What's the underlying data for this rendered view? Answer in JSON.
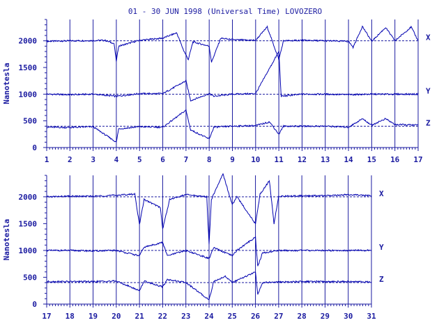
{
  "title": "01 - 30 JUN 1998 (Universal Time) LOVOZERO",
  "colors": {
    "ink": "#1a1aa0",
    "trace": "#0000b0",
    "background": "#ffffff"
  },
  "chart_data": [
    {
      "type": "line",
      "panel": "top",
      "ylabel": "Nanotesla",
      "ylim": [
        0,
        2400
      ],
      "y_ticks": [
        "0",
        "500",
        "1000",
        "1500",
        "2000"
      ],
      "y_tick_values": [
        0,
        500,
        1000,
        1500,
        2000
      ],
      "x_ticks": [
        "1",
        "2",
        "3",
        "4",
        "5",
        "6",
        "7",
        "8",
        "9",
        "10",
        "11",
        "12",
        "13",
        "14",
        "15",
        "16",
        "17"
      ],
      "xlim": [
        1,
        17
      ],
      "series": [
        {
          "name": "X",
          "baseline": 2000,
          "values": [
            {
              "x": 1,
              "y": 1990
            },
            {
              "x": 2,
              "y": 2000
            },
            {
              "x": 3,
              "y": 2005
            },
            {
              "x": 3.5,
              "y": 2010
            },
            {
              "x": 3.9,
              "y": 1950
            },
            {
              "x": 4.0,
              "y": 1620
            },
            {
              "x": 4.1,
              "y": 1900
            },
            {
              "x": 5,
              "y": 2010
            },
            {
              "x": 6,
              "y": 2050
            },
            {
              "x": 6.6,
              "y": 2150
            },
            {
              "x": 6.9,
              "y": 1820
            },
            {
              "x": 7.1,
              "y": 1650
            },
            {
              "x": 7.3,
              "y": 1980
            },
            {
              "x": 8,
              "y": 1900
            },
            {
              "x": 8.1,
              "y": 1600
            },
            {
              "x": 8.5,
              "y": 2050
            },
            {
              "x": 9,
              "y": 2020
            },
            {
              "x": 10,
              "y": 2010
            },
            {
              "x": 10.5,
              "y": 2260
            },
            {
              "x": 11.0,
              "y": 1650
            },
            {
              "x": 11.2,
              "y": 2000
            },
            {
              "x": 12,
              "y": 2010
            },
            {
              "x": 13,
              "y": 2000
            },
            {
              "x": 14,
              "y": 1990
            },
            {
              "x": 14.2,
              "y": 1880
            },
            {
              "x": 14.6,
              "y": 2270
            },
            {
              "x": 15,
              "y": 1990
            },
            {
              "x": 15.6,
              "y": 2250
            },
            {
              "x": 16,
              "y": 2000
            },
            {
              "x": 16.7,
              "y": 2260
            },
            {
              "x": 17,
              "y": 2000
            }
          ]
        },
        {
          "name": "Y",
          "baseline": 1000,
          "values": [
            {
              "x": 1,
              "y": 1000
            },
            {
              "x": 2,
              "y": 990
            },
            {
              "x": 3,
              "y": 1000
            },
            {
              "x": 4,
              "y": 960
            },
            {
              "x": 5,
              "y": 1010
            },
            {
              "x": 6,
              "y": 1010
            },
            {
              "x": 7.0,
              "y": 1250
            },
            {
              "x": 7.2,
              "y": 880
            },
            {
              "x": 8,
              "y": 1010
            },
            {
              "x": 8.2,
              "y": 960
            },
            {
              "x": 9,
              "y": 1000
            },
            {
              "x": 10,
              "y": 1010
            },
            {
              "x": 11.0,
              "y": 1800
            },
            {
              "x": 11.1,
              "y": 960
            },
            {
              "x": 12,
              "y": 1000
            },
            {
              "x": 13,
              "y": 1000
            },
            {
              "x": 14,
              "y": 990
            },
            {
              "x": 15,
              "y": 1000
            },
            {
              "x": 16,
              "y": 1000
            },
            {
              "x": 17,
              "y": 1000
            }
          ]
        },
        {
          "name": "Z",
          "baseline": 400,
          "values": [
            {
              "x": 1,
              "y": 380
            },
            {
              "x": 2,
              "y": 375
            },
            {
              "x": 3,
              "y": 390
            },
            {
              "x": 4.0,
              "y": 100
            },
            {
              "x": 4.1,
              "y": 350
            },
            {
              "x": 5,
              "y": 390
            },
            {
              "x": 6,
              "y": 380
            },
            {
              "x": 7.0,
              "y": 700
            },
            {
              "x": 7.2,
              "y": 330
            },
            {
              "x": 8.0,
              "y": 160
            },
            {
              "x": 8.2,
              "y": 380
            },
            {
              "x": 9,
              "y": 400
            },
            {
              "x": 10,
              "y": 410
            },
            {
              "x": 10.6,
              "y": 480
            },
            {
              "x": 11.0,
              "y": 250
            },
            {
              "x": 11.2,
              "y": 400
            },
            {
              "x": 12,
              "y": 400
            },
            {
              "x": 13,
              "y": 400
            },
            {
              "x": 14,
              "y": 380
            },
            {
              "x": 14.6,
              "y": 540
            },
            {
              "x": 15,
              "y": 420
            },
            {
              "x": 15.6,
              "y": 540
            },
            {
              "x": 16,
              "y": 430
            },
            {
              "x": 17,
              "y": 420
            }
          ]
        }
      ]
    },
    {
      "type": "line",
      "panel": "bottom",
      "ylabel": "Nanotesla",
      "ylim": [
        0,
        2400
      ],
      "y_ticks": [
        "0",
        "500",
        "1000",
        "1500",
        "2000"
      ],
      "y_tick_values": [
        0,
        500,
        1000,
        1500,
        2000
      ],
      "x_ticks": [
        "17",
        "18",
        "19",
        "20",
        "21",
        "22",
        "23",
        "24",
        "25",
        "26",
        "27",
        "28",
        "29",
        "30",
        "31"
      ],
      "xlim": [
        17,
        31
      ],
      "series": [
        {
          "name": "X",
          "baseline": 2000,
          "values": [
            {
              "x": 17,
              "y": 2000
            },
            {
              "x": 18,
              "y": 2010
            },
            {
              "x": 19,
              "y": 2010
            },
            {
              "x": 20,
              "y": 2030
            },
            {
              "x": 20.8,
              "y": 2050
            },
            {
              "x": 21.0,
              "y": 1480
            },
            {
              "x": 21.2,
              "y": 1950
            },
            {
              "x": 21.9,
              "y": 1800
            },
            {
              "x": 22.0,
              "y": 1400
            },
            {
              "x": 22.3,
              "y": 1950
            },
            {
              "x": 23,
              "y": 2040
            },
            {
              "x": 23.9,
              "y": 2000
            },
            {
              "x": 24.0,
              "y": 1100
            },
            {
              "x": 24.1,
              "y": 1950
            },
            {
              "x": 24.6,
              "y": 2430
            },
            {
              "x": 25.0,
              "y": 1850
            },
            {
              "x": 25.2,
              "y": 2000
            },
            {
              "x": 26.0,
              "y": 1500
            },
            {
              "x": 26.2,
              "y": 2050
            },
            {
              "x": 26.6,
              "y": 2300
            },
            {
              "x": 26.8,
              "y": 1500
            },
            {
              "x": 27,
              "y": 2010
            },
            {
              "x": 28,
              "y": 2020
            },
            {
              "x": 29,
              "y": 2020
            },
            {
              "x": 30,
              "y": 2040
            },
            {
              "x": 31,
              "y": 2020
            }
          ]
        },
        {
          "name": "Y",
          "baseline": 1000,
          "values": [
            {
              "x": 17,
              "y": 1000
            },
            {
              "x": 18,
              "y": 1000
            },
            {
              "x": 19,
              "y": 990
            },
            {
              "x": 20,
              "y": 1000
            },
            {
              "x": 21.0,
              "y": 900
            },
            {
              "x": 21.2,
              "y": 1060
            },
            {
              "x": 22.0,
              "y": 1150
            },
            {
              "x": 22.2,
              "y": 900
            },
            {
              "x": 23,
              "y": 1000
            },
            {
              "x": 24.0,
              "y": 850
            },
            {
              "x": 24.2,
              "y": 1050
            },
            {
              "x": 25.0,
              "y": 900
            },
            {
              "x": 25.2,
              "y": 1000
            },
            {
              "x": 26.0,
              "y": 1250
            },
            {
              "x": 26.1,
              "y": 700
            },
            {
              "x": 26.3,
              "y": 950
            },
            {
              "x": 27,
              "y": 1000
            },
            {
              "x": 28,
              "y": 1000
            },
            {
              "x": 29,
              "y": 1000
            },
            {
              "x": 30,
              "y": 1000
            },
            {
              "x": 31,
              "y": 1000
            }
          ]
        },
        {
          "name": "Z",
          "baseline": 400,
          "values": [
            {
              "x": 17,
              "y": 420
            },
            {
              "x": 18,
              "y": 420
            },
            {
              "x": 19,
              "y": 420
            },
            {
              "x": 20,
              "y": 430
            },
            {
              "x": 21.0,
              "y": 250
            },
            {
              "x": 21.2,
              "y": 430
            },
            {
              "x": 22.0,
              "y": 320
            },
            {
              "x": 22.2,
              "y": 460
            },
            {
              "x": 23,
              "y": 400
            },
            {
              "x": 24.0,
              "y": 80
            },
            {
              "x": 24.2,
              "y": 420
            },
            {
              "x": 24.7,
              "y": 520
            },
            {
              "x": 25.0,
              "y": 400
            },
            {
              "x": 26.0,
              "y": 600
            },
            {
              "x": 26.1,
              "y": 180
            },
            {
              "x": 26.3,
              "y": 400
            },
            {
              "x": 27,
              "y": 410
            },
            {
              "x": 28,
              "y": 420
            },
            {
              "x": 29,
              "y": 420
            },
            {
              "x": 30,
              "y": 420
            },
            {
              "x": 31,
              "y": 410
            }
          ]
        }
      ]
    }
  ]
}
